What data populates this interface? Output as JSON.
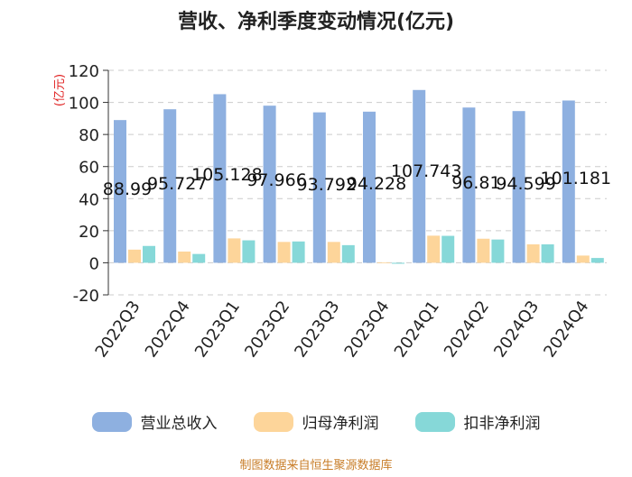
{
  "chart_data": {
    "type": "bar",
    "title": "营收、净利季度变动情况(亿元)",
    "ylabel": "(亿元)",
    "ylim": [
      -20,
      120
    ],
    "yticks": [
      -20,
      0,
      20,
      40,
      60,
      80,
      100,
      120
    ],
    "categories": [
      "2022Q3",
      "2022Q4",
      "2023Q1",
      "2023Q2",
      "2023Q3",
      "2023Q4",
      "2024Q1",
      "2024Q2",
      "2024Q3",
      "2024Q4"
    ],
    "series": [
      {
        "name": "营业总收入",
        "color": "#8eb0e0",
        "values": [
          88.99,
          95.727,
          105.128,
          97.966,
          93.792,
          94.228,
          107.743,
          96.81,
          94.599,
          101.181
        ],
        "labels": [
          "88.99",
          "95.727",
          "105.128",
          "97.966",
          "93.792",
          "94.228",
          "107.743",
          "96.81",
          "94.599",
          "101.181"
        ]
      },
      {
        "name": "归母净利润",
        "color": "#fdd59a",
        "values": [
          8.2,
          7.0,
          15.2,
          13.0,
          13.0,
          0.2,
          16.9,
          15.0,
          11.5,
          4.5
        ]
      },
      {
        "name": "扣非净利润",
        "color": "#86d8d8",
        "values": [
          10.5,
          5.5,
          14.0,
          13.3,
          11.0,
          -0.6,
          16.8,
          14.5,
          11.5,
          3.0
        ]
      }
    ],
    "grid": true,
    "legend_position": "bottom"
  },
  "source_note": "制图数据来自恒生聚源数据库"
}
